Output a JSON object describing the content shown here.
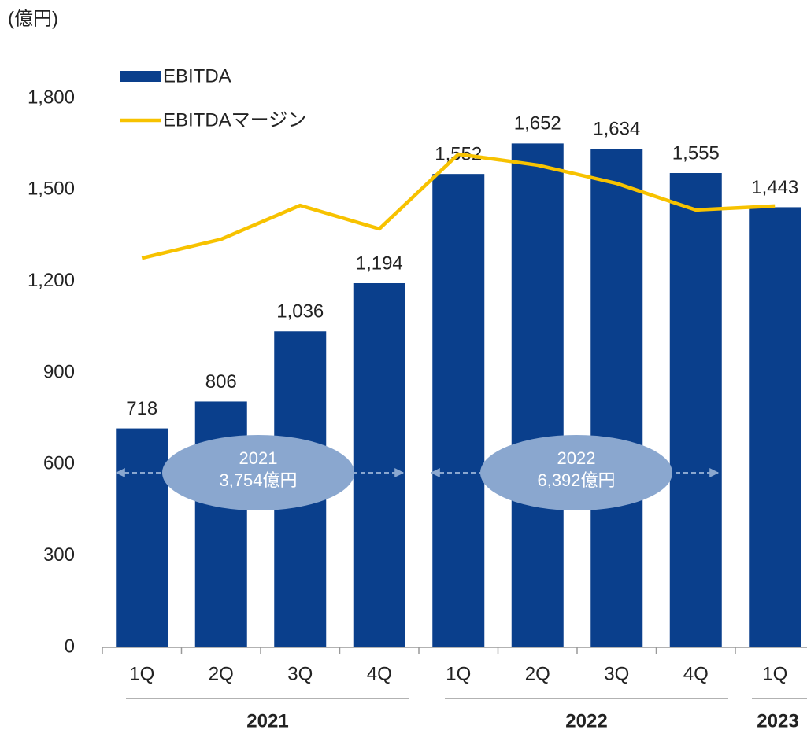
{
  "chart_data": {
    "type": "bar",
    "unit_label": "(億円)",
    "categories": [
      "1Q",
      "2Q",
      "3Q",
      "4Q",
      "1Q",
      "2Q",
      "3Q",
      "4Q",
      "1Q"
    ],
    "groups": [
      "2021",
      "2022",
      "2023"
    ],
    "series": [
      {
        "name": "EBITDA",
        "type": "bar",
        "color": "#0a3f8c",
        "values": [
          718,
          806,
          1036,
          1194,
          1552,
          1652,
          1634,
          1555,
          1443
        ],
        "value_labels": [
          "718",
          "806",
          "1,036",
          "1,194",
          "1,552",
          "1,652",
          "1,634",
          "1,555",
          "1,443"
        ]
      },
      {
        "name": "EBITDAマージン",
        "type": "line",
        "color": "#f7c200",
        "values": [
          1276,
          1338,
          1449,
          1372,
          1617,
          1581,
          1521,
          1434,
          1447
        ]
      }
    ],
    "ylim": [
      0,
      1800
    ],
    "yticks": [
      0,
      300,
      600,
      900,
      {
        "value": 1200,
        "label": "1,200"
      },
      {
        "value": 1500,
        "label": "1,500"
      },
      {
        "value": 1800,
        "label": "1,800"
      }
    ],
    "annotations": [
      {
        "title": "2021",
        "text": "3,754億円"
      },
      {
        "title": "2022",
        "text": "6,392億円"
      }
    ]
  }
}
